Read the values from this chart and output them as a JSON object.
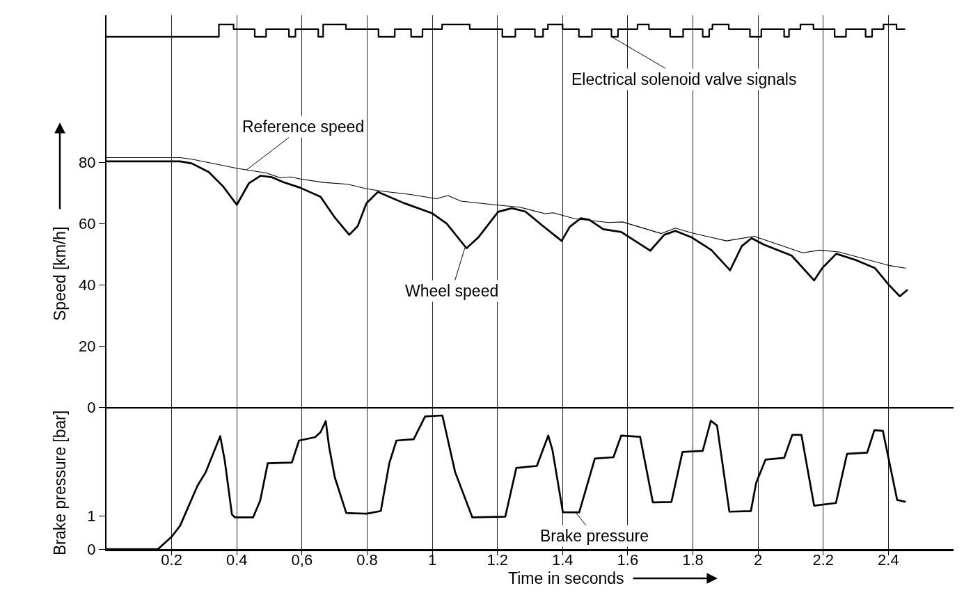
{
  "chart_data": [
    {
      "type": "line",
      "ylabel": "Speed [km/h]",
      "xlim": [
        0,
        2.6
      ],
      "xticks": [
        0.2,
        0.4,
        0.6,
        0.8,
        1,
        1.2,
        1.4,
        1.6,
        1.8,
        2,
        2.2,
        2.4
      ],
      "ylim": [
        0,
        128
      ],
      "yticks": [
        0,
        20,
        40,
        60,
        80
      ],
      "grid": "x",
      "tick_labels": "y",
      "series": [
        {
          "type": "step",
          "color": "#000000",
          "x": [
            0,
            0.345,
            0.39,
            0.455,
            0.49,
            0.56,
            0.58,
            0.65,
            0.665,
            0.735,
            0.835,
            0.885,
            0.935,
            0.97,
            1.03,
            1.115,
            1.215,
            1.255,
            1.315,
            1.34,
            1.355,
            1.4,
            1.45,
            1.49,
            1.55,
            1.57,
            1.63,
            1.665,
            1.73,
            1.77,
            1.83,
            1.85,
            1.86,
            1.91,
            1.975,
            2.01,
            2.08,
            2.095,
            2.13,
            2.17,
            2.235,
            2.27,
            2.33,
            2.35,
            2.385,
            2.425,
            2.45
          ],
          "values": [
            121,
            125,
            123.5,
            121,
            123.5,
            121,
            123.5,
            121,
            125,
            123.5,
            121,
            123.5,
            121,
            123.5,
            125,
            123.5,
            121,
            123.5,
            121,
            123.5,
            125,
            123.5,
            121,
            123.5,
            121,
            123.5,
            125,
            123.5,
            121,
            123.5,
            121,
            123.5,
            125,
            123.5,
            121,
            123.5,
            121,
            123.5,
            125,
            123.5,
            121,
            123.5,
            121,
            123.5,
            125,
            123.5,
            123.5
          ]
        },
        {
          "color": "#000000",
          "x": [
            0,
            0.226,
            0.262,
            0.402,
            0.49,
            0.534,
            0.565,
            0.596,
            0.666,
            0.741,
            0.796,
            0.842,
            0.93,
            1.013,
            1.048,
            1.088,
            1.202,
            1.269,
            1.346,
            1.371,
            1.439,
            1.542,
            1.584,
            1.703,
            1.746,
            1.797,
            1.903,
            1.988,
            2.137,
            2.189,
            2.248,
            2.401,
            2.452
          ],
          "values": [
            81.5,
            81.5,
            81,
            78,
            76.5,
            74.9,
            75.2,
            74.5,
            73.4,
            72.8,
            71.4,
            70.6,
            69.5,
            68.1,
            69.1,
            67.3,
            66,
            65.3,
            63.2,
            63.5,
            61.5,
            60.3,
            60.5,
            56.7,
            58.5,
            56.9,
            54.3,
            55.8,
            50.4,
            51.3,
            50.7,
            46.3,
            45.4
          ]
        },
        {
          "color": "#000000",
          "x": [
            0,
            0.226,
            0.262,
            0.314,
            0.358,
            0.4,
            0.437,
            0.473,
            0.508,
            0.543,
            0.594,
            0.657,
            0.701,
            0.745,
            0.771,
            0.798,
            0.833,
            0.912,
            1.0,
            1.044,
            1.105,
            1.141,
            1.202,
            1.244,
            1.286,
            1.337,
            1.397,
            1.422,
            1.456,
            1.482,
            1.525,
            1.58,
            1.669,
            1.712,
            1.746,
            1.797,
            1.857,
            1.914,
            1.95,
            1.98,
            2.018,
            2.103,
            2.172,
            2.197,
            2.24,
            2.299,
            2.359,
            2.401,
            2.435,
            2.457
          ],
          "values": [
            80.3,
            80.3,
            79.6,
            76.8,
            72.1,
            66.1,
            73.1,
            75.6,
            75.1,
            73.5,
            71.7,
            68.7,
            61.9,
            56.3,
            59.1,
            66.6,
            70.3,
            66.7,
            63.3,
            60,
            51.9,
            55.4,
            63.8,
            65,
            63.9,
            59.4,
            54.3,
            58.9,
            61.7,
            61.2,
            58.1,
            57.2,
            51.1,
            56.3,
            57.6,
            55.4,
            51.3,
            44.7,
            52.6,
            55.2,
            53.1,
            49.5,
            41.4,
            45.4,
            50.1,
            48.1,
            45.4,
            40,
            36.2,
            38.2
          ]
        }
      ],
      "annotations": [
        {
          "text": "Electrical solenoid valve signals",
          "x": 1.55,
          "y": 121
        },
        {
          "text": "Reference speed",
          "x": 0.43,
          "y": 77.5
        },
        {
          "text": "Wheel speed",
          "x": 1.1,
          "y": 52
        }
      ]
    },
    {
      "type": "line",
      "xlabel": "Time in seconds",
      "ylabel": "Brake pressure [bar]",
      "xlim": [
        0,
        2.6
      ],
      "xticks": [
        0.2,
        0.4,
        {
          "value": 0.6,
          "label": "0,6"
        },
        0.8,
        1,
        1.2,
        1.4,
        1.6,
        1.8,
        2,
        2.2,
        2.4
      ],
      "ylim": [
        0,
        4.25
      ],
      "yticks": [
        0,
        1
      ],
      "grid": "x",
      "series": [
        {
          "color": "#000000",
          "x": [
            0,
            0.158,
            0.2,
            0.226,
            0.279,
            0.305,
            0.349,
            0.363,
            0.385,
            0.394,
            0.45,
            0.472,
            0.495,
            0.569,
            0.591,
            0.64,
            0.657,
            0.673,
            0.683,
            0.701,
            0.736,
            0.798,
            0.842,
            0.868,
            0.89,
            0.943,
            0.978,
            1.031,
            1.07,
            1.123,
            1.224,
            1.258,
            1.321,
            1.356,
            1.369,
            1.401,
            1.451,
            1.499,
            1.556,
            1.58,
            1.638,
            1.677,
            1.734,
            1.768,
            1.83,
            1.855,
            1.874,
            1.912,
            1.978,
            1.994,
            2.023,
            2.08,
            2.105,
            2.133,
            2.172,
            2.239,
            2.273,
            2.335,
            2.357,
            2.383,
            2.427,
            2.451
          ],
          "values": [
            0,
            0,
            0.37,
            0.7,
            1.89,
            2.31,
            3.38,
            2.65,
            1.04,
            0.95,
            0.95,
            1.46,
            2.57,
            2.59,
            3.25,
            3.35,
            3.5,
            3.83,
            3.08,
            2.14,
            1.08,
            1.06,
            1.14,
            2.57,
            3.25,
            3.29,
            3.97,
            4,
            2.31,
            0.95,
            0.97,
            2.43,
            2.49,
            3.4,
            2.96,
            1.1,
            1.1,
            2.71,
            2.75,
            3.4,
            3.36,
            1.4,
            1.41,
            2.91,
            2.94,
            3.84,
            3.7,
            1.12,
            1.14,
            1.98,
            2.68,
            2.73,
            3.42,
            3.42,
            1.3,
            1.38,
            2.85,
            2.89,
            3.56,
            3.54,
            1.47,
            1.42
          ]
        }
      ],
      "annotations": [
        {
          "text": "Brake pressure",
          "x": 1.44,
          "y": 1.1
        }
      ]
    }
  ]
}
